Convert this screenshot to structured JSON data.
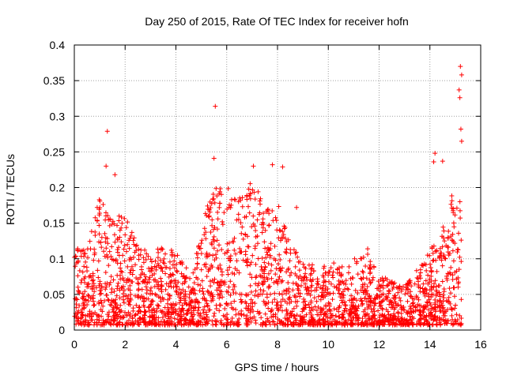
{
  "chart_data": {
    "type": "scatter",
    "title": "Day 250 of 2015, Rate Of TEC Index for receiver hofn",
    "xlabel": "GPS time / hours",
    "ylabel": "ROTI / TECUs",
    "xlim": [
      0,
      16
    ],
    "ylim": [
      0,
      0.4
    ],
    "xticks": [
      0,
      2,
      4,
      6,
      8,
      10,
      12,
      14,
      16
    ],
    "xtick_labels": [
      "0",
      "2",
      "4",
      "6",
      "8",
      "10",
      "12",
      "14",
      "16"
    ],
    "yticks": [
      0,
      0.05,
      0.1,
      0.15,
      0.2,
      0.25,
      0.3,
      0.35,
      0.4
    ],
    "ytick_labels": [
      "0",
      "0.05",
      "0.1",
      "0.15",
      "0.2",
      "0.25",
      "0.3",
      "0.35",
      "0.4"
    ],
    "grid": true,
    "marker": "plus",
    "series_color": "#ff0000",
    "envelope_hours": [
      0,
      0.5,
      1.0,
      1.5,
      2.0,
      2.5,
      3.0,
      3.5,
      4.0,
      4.6,
      5.0,
      5.5,
      6.0,
      6.5,
      7.0,
      7.5,
      8.0,
      8.5,
      9.0,
      9.5,
      10.0,
      10.5,
      11.0,
      11.5,
      12.0,
      12.5,
      13.0,
      13.5,
      14.0,
      14.5,
      15.0,
      15.25
    ],
    "envelope_roti_max": [
      0.13,
      0.11,
      0.19,
      0.17,
      0.16,
      0.12,
      0.11,
      0.12,
      0.11,
      0.08,
      0.15,
      0.2,
      0.2,
      0.19,
      0.22,
      0.17,
      0.18,
      0.12,
      0.1,
      0.09,
      0.1,
      0.09,
      0.1,
      0.11,
      0.08,
      0.07,
      0.06,
      0.09,
      0.11,
      0.15,
      0.21,
      0.21
    ],
    "peaks": [
      {
        "x": 1.3,
        "y": 0.279
      },
      {
        "x": 1.25,
        "y": 0.23
      },
      {
        "x": 1.6,
        "y": 0.218
      },
      {
        "x": 5.55,
        "y": 0.314
      },
      {
        "x": 5.5,
        "y": 0.241
      },
      {
        "x": 7.05,
        "y": 0.23
      },
      {
        "x": 7.8,
        "y": 0.232
      },
      {
        "x": 8.2,
        "y": 0.229
      },
      {
        "x": 8.75,
        "y": 0.172
      },
      {
        "x": 11.55,
        "y": 0.114
      },
      {
        "x": 14.2,
        "y": 0.248
      },
      {
        "x": 14.15,
        "y": 0.236
      },
      {
        "x": 14.5,
        "y": 0.237
      },
      {
        "x": 15.2,
        "y": 0.37
      },
      {
        "x": 15.25,
        "y": 0.358
      },
      {
        "x": 15.15,
        "y": 0.337
      },
      {
        "x": 15.18,
        "y": 0.326
      },
      {
        "x": 15.22,
        "y": 0.282
      },
      {
        "x": 15.25,
        "y": 0.265
      }
    ]
  }
}
